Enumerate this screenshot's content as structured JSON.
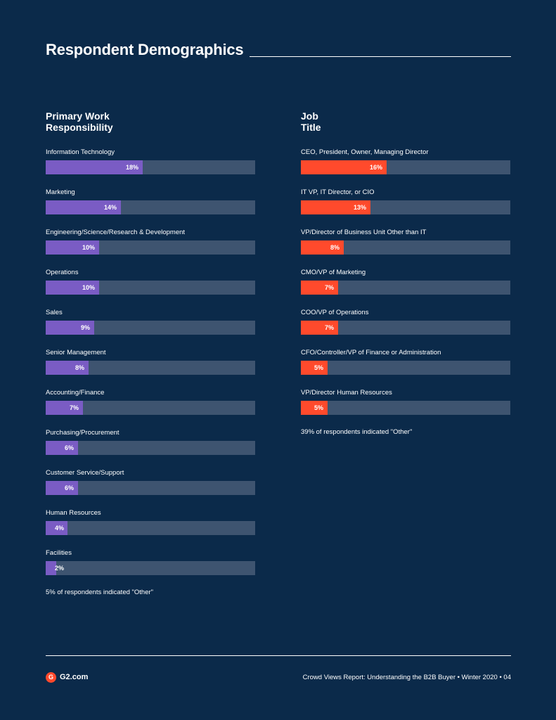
{
  "page": {
    "title": "Respondent Demographics"
  },
  "colors": {
    "background": "#0b2a4a",
    "track": "#3e5470",
    "purple": "#7a5cc4",
    "orange": "#ff4a2c"
  },
  "chart_data": [
    {
      "type": "bar",
      "orientation": "horizontal",
      "title": "Primary Work Responsibility",
      "categories": [
        "Information Technology",
        "Marketing",
        "Engineering/Science/Research & Development",
        "Operations",
        "Sales",
        "Senior Management",
        "Accounting/Finance",
        "Purchasing/Procurement",
        "Customer Service/Support",
        "Human Resources",
        "Facilities"
      ],
      "values": [
        18,
        14,
        10,
        10,
        9,
        8,
        7,
        6,
        6,
        4,
        2
      ],
      "value_labels": [
        "18%",
        "14%",
        "10%",
        "10%",
        "9%",
        "8%",
        "7%",
        "6%",
        "6%",
        "4%",
        "2%"
      ],
      "max": 39,
      "color": "#7a5cc4",
      "note": "5% of respondents indicated \"Other\""
    },
    {
      "type": "bar",
      "orientation": "horizontal",
      "title": "Job Title",
      "categories": [
        "CEO, President, Owner, Managing Director",
        "IT VP, IT Director, or CIO",
        "VP/Director of Business Unit Other than IT",
        "CMO/VP of Marketing",
        "COO/VP of Operations",
        "CFO/Controller/VP of Finance or Administration",
        "VP/Director Human Resources"
      ],
      "values": [
        16,
        13,
        8,
        7,
        7,
        5,
        5
      ],
      "value_labels": [
        "16%",
        "13%",
        "8%",
        "7%",
        "7%",
        "5%",
        "5%"
      ],
      "max": 39,
      "color": "#ff4a2c",
      "note": "39% of respondents indicated \"Other\""
    }
  ],
  "footer": {
    "logo_text": "G2.com",
    "logo_mark": "G",
    "report_text": "Crowd Views Report: Understanding the B2B Buyer • Winter 2020 • 04"
  }
}
